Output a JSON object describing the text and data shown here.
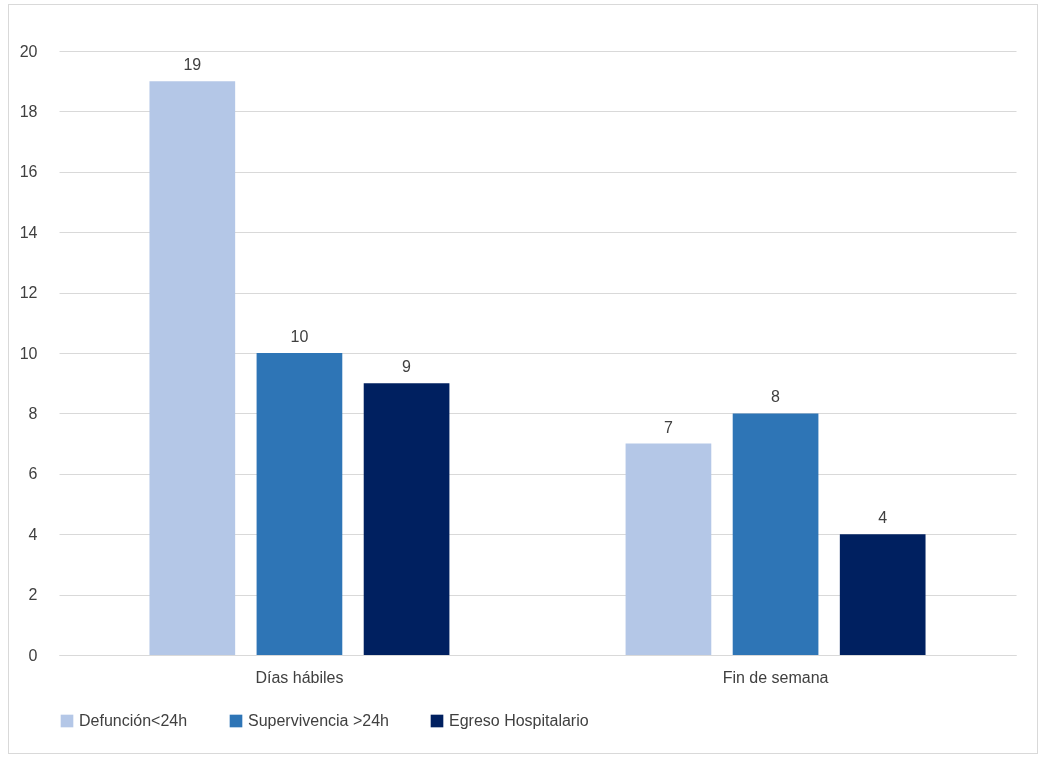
{
  "chart_data": {
    "type": "bar",
    "categories": [
      "Días hábiles",
      "Fin de semana"
    ],
    "series": [
      {
        "name": "Defunción<24h",
        "color": "#b4c7e7",
        "values": [
          19,
          7
        ]
      },
      {
        "name": "Supervivencia >24h",
        "color": "#2e75b6",
        "values": [
          10,
          8
        ]
      },
      {
        "name": "Egreso Hospitalario",
        "color": "#002060",
        "values": [
          9,
          4
        ]
      }
    ],
    "ylim": [
      0,
      20
    ],
    "yticks": [
      0,
      2,
      4,
      6,
      8,
      10,
      12,
      14,
      16,
      18,
      20
    ],
    "grid": "y",
    "legend": "bottom",
    "data_labels": true
  }
}
